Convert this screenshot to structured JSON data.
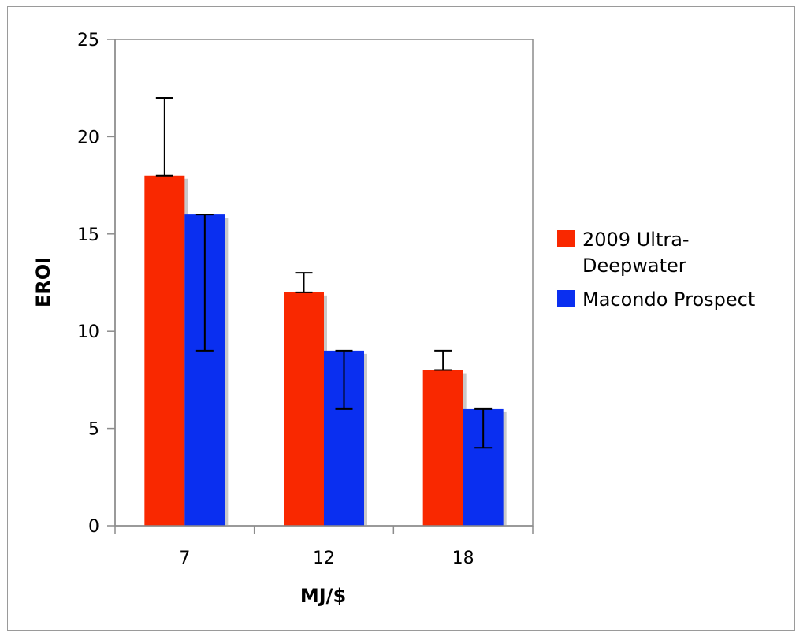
{
  "chart_data": {
    "type": "bar",
    "title": "",
    "xlabel": "MJ/$",
    "ylabel": "EROI",
    "categories": [
      "7",
      "12",
      "18"
    ],
    "ylim": [
      0,
      25
    ],
    "yticks": [
      0,
      5,
      10,
      15,
      20,
      25
    ],
    "grid": false,
    "legend_position": "right",
    "series": [
      {
        "name": "2009 Ultra-Deepwater",
        "color": "#f92800",
        "values": [
          18,
          12,
          8
        ],
        "error_bars": [
          {
            "low": 18,
            "high": 22
          },
          {
            "low": 12,
            "high": 13
          },
          {
            "low": 8,
            "high": 9
          }
        ]
      },
      {
        "name": "Macondo Prospect",
        "color": "#0a2ff0",
        "values": [
          16,
          9,
          6
        ],
        "error_bars": [
          {
            "low": 9,
            "high": 16
          },
          {
            "low": 6,
            "high": 9
          },
          {
            "low": 4,
            "high": 6
          }
        ]
      }
    ],
    "legend": {
      "entries": [
        {
          "lines": [
            "2009 Ultra-",
            "Deepwater"
          ],
          "color": "#f92800"
        },
        {
          "lines": [
            "Macondo Prospect"
          ],
          "color": "#0a2ff0"
        }
      ]
    }
  }
}
